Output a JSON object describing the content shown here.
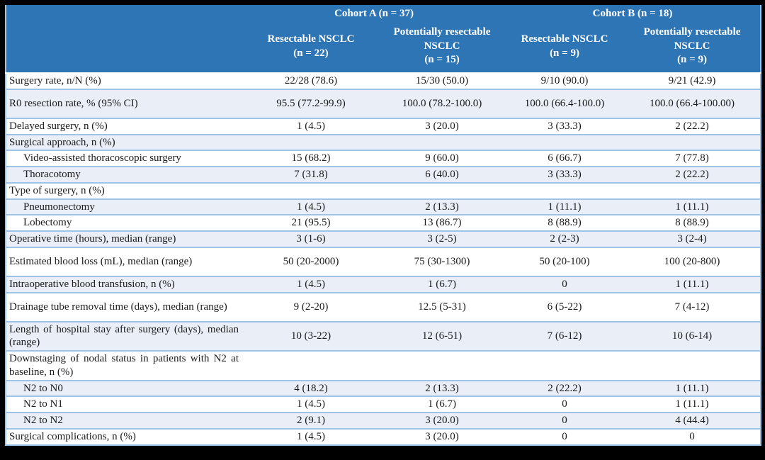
{
  "colors": {
    "header_bg": "#2E75B6",
    "stripe_bg": "#E9EEF7",
    "row_border": "#9DC3E6",
    "frame": "#000000"
  },
  "header": {
    "cohorts": [
      {
        "label": "Cohort A (n = 37)"
      },
      {
        "label": "Cohort B (n = 18)"
      }
    ],
    "columns": [
      {
        "name": "Resectable NSCLC",
        "n": "(n = 22)"
      },
      {
        "name": "Potentially resectable NSCLC",
        "n": "(n = 15)"
      },
      {
        "name": "Resectable NSCLC",
        "n": "(n = 9)"
      },
      {
        "name": "Potentially resectable NSCLC",
        "n": "(n = 9)"
      }
    ]
  },
  "rows": [
    {
      "label": "Surgery rate, n/N (%)",
      "indent": false,
      "tall": false,
      "shaded": false,
      "values": [
        "22/28 (78.6)",
        "15/30 (50.0)",
        "9/10 (90.0)",
        "9/21 (42.9)"
      ]
    },
    {
      "label": "R0 resection rate, % (95% CI)",
      "indent": false,
      "tall": true,
      "shaded": true,
      "values": [
        "95.5 (77.2-99.9)",
        "100.0 (78.2-100.0)",
        "100.0 (66.4-100.0)",
        "100.0 (66.4-100.00)"
      ]
    },
    {
      "label": "Delayed surgery, n (%)",
      "indent": false,
      "tall": false,
      "shaded": false,
      "values": [
        "1 (4.5)",
        "3 (20.0)",
        "3 (33.3)",
        "2 (22.2)"
      ]
    },
    {
      "label": "Surgical approach, n (%)",
      "indent": false,
      "tall": false,
      "shaded": true,
      "values": [
        "",
        "",
        "",
        ""
      ]
    },
    {
      "label": "Video-assisted thoracoscopic surgery",
      "indent": true,
      "tall": false,
      "shaded": false,
      "values": [
        "15 (68.2)",
        "9 (60.0)",
        "6 (66.7)",
        "7 (77.8)"
      ]
    },
    {
      "label": "Thoracotomy",
      "indent": true,
      "tall": false,
      "shaded": true,
      "values": [
        "7 (31.8)",
        "6 (40.0)",
        "3 (33.3)",
        "2 (22.2)"
      ]
    },
    {
      "label": "Type of surgery, n (%)",
      "indent": false,
      "tall": false,
      "shaded": false,
      "values": [
        "",
        "",
        "",
        ""
      ]
    },
    {
      "label": "Pneumonectomy",
      "indent": true,
      "tall": false,
      "shaded": true,
      "values": [
        "1 (4.5)",
        "2 (13.3)",
        "1 (11.1)",
        "1 (11.1)"
      ]
    },
    {
      "label": "Lobectomy",
      "indent": true,
      "tall": false,
      "shaded": false,
      "values": [
        "21 (95.5)",
        "13 (86.7)",
        "8 (88.9)",
        "8 (88.9)"
      ]
    },
    {
      "label": "Operative time (hours), median (range)",
      "indent": false,
      "tall": false,
      "shaded": true,
      "values": [
        "3 (1-6)",
        "3 (2-5)",
        "2 (2-3)",
        "3 (2-4)"
      ]
    },
    {
      "label": "Estimated blood loss (mL), median (range)",
      "indent": false,
      "tall": true,
      "shaded": false,
      "values": [
        "50 (20-2000)",
        "75 (30-1300)",
        "50 (20-100)",
        "100 (20-800)"
      ]
    },
    {
      "label": "Intraoperative blood transfusion, n (%)",
      "indent": false,
      "tall": false,
      "shaded": true,
      "values": [
        "1 (4.5)",
        "1 (6.7)",
        "0",
        "1 (11.1)"
      ]
    },
    {
      "label": "Drainage tube removal time (days), median (range)",
      "indent": false,
      "tall": true,
      "shaded": false,
      "values": [
        "9 (2-20)",
        "12.5 (5-31)",
        "6 (5-22)",
        "7 (4-12)"
      ]
    },
    {
      "label": "Length of hospital stay after surgery (days), median (range)",
      "indent": false,
      "tall": true,
      "shaded": true,
      "values": [
        "10 (3-22)",
        "12 (6-51)",
        "7 (6-12)",
        "10 (6-14)"
      ]
    },
    {
      "label": "Downstaging of nodal status in patients with N2 at baseline, n (%)",
      "indent": false,
      "tall": true,
      "shaded": false,
      "values": [
        "",
        "",
        "",
        ""
      ]
    },
    {
      "label": "N2 to N0",
      "indent": true,
      "tall": false,
      "shaded": true,
      "values": [
        "4 (18.2)",
        "2 (13.3)",
        "2 (22.2)",
        "1 (11.1)"
      ]
    },
    {
      "label": "N2 to N1",
      "indent": true,
      "tall": false,
      "shaded": false,
      "values": [
        "1 (4.5)",
        "1 (6.7)",
        "0",
        "1 (11.1)"
      ]
    },
    {
      "label": "N2 to N2",
      "indent": true,
      "tall": false,
      "shaded": true,
      "values": [
        "2 (9.1)",
        "3 (20.0)",
        "0",
        "4 (44.4)"
      ]
    },
    {
      "label": "Surgical complications, n (%)",
      "indent": false,
      "tall": false,
      "shaded": false,
      "values": [
        "1 (4.5)",
        "3 (20.0)",
        "0",
        "0"
      ]
    }
  ]
}
